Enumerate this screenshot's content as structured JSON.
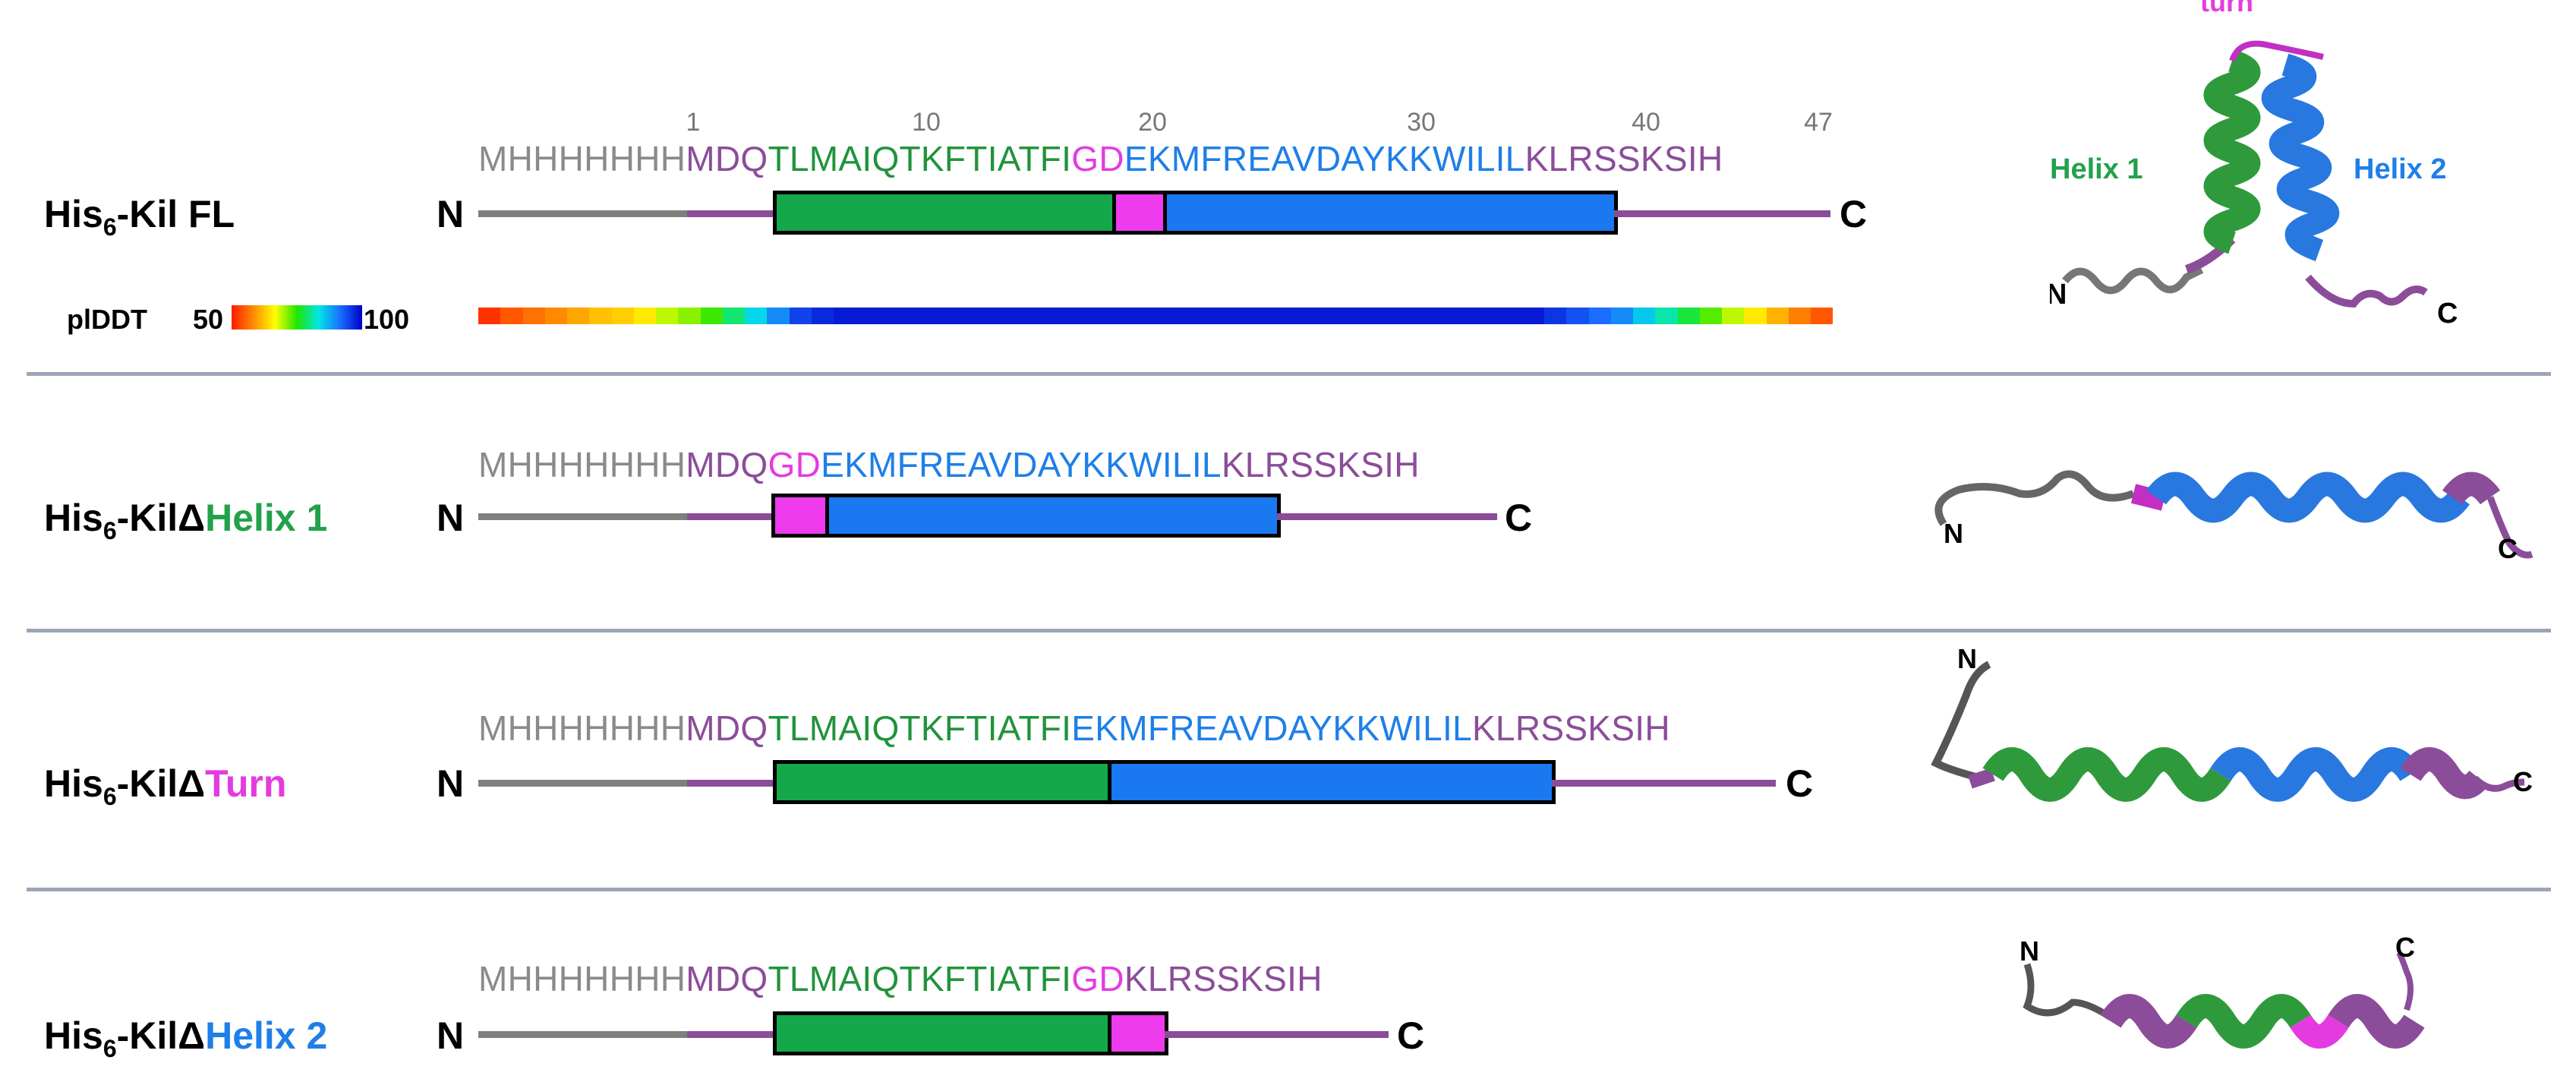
{
  "colors": {
    "his_tag": "#7f7f7f",
    "linker": "#8b4d99",
    "helix1": "#21933b",
    "turn": "#e43be0",
    "helix2": "#1e7fe8",
    "box_helix1": "#14a84b",
    "box_helix2": "#1a78f0",
    "box_turn": "#ee3bee"
  },
  "constructs": [
    {
      "name_prefix": "His",
      "name_sub": "6",
      "name_mid": "-Kil",
      "name_suffix": " FL",
      "segments": [
        {
          "text": "MHHHHHHH",
          "color": "#8a8a8a"
        },
        {
          "text": "MDQ",
          "color": "#8b4d99"
        },
        {
          "text": "TLMAIQTKFTIATFI",
          "color": "#21933b"
        },
        {
          "text": "GD",
          "color": "#e43be0"
        },
        {
          "text": "EKMFREAVDAYKKWILIL",
          "color": "#1e7fe8"
        },
        {
          "text": "KLRSSKSIH",
          "color": "#8b4d99"
        }
      ]
    },
    {
      "name_prefix": "His",
      "name_sub": "6",
      "name_mid": "-KilΔ",
      "name_suffix": "Helix 1",
      "suffix_color": "#21a24a",
      "segments": [
        {
          "text": "MHHHHHHH",
          "color": "#8a8a8a"
        },
        {
          "text": "MDQ",
          "color": "#8b4d99"
        },
        {
          "text": "GD",
          "color": "#e43be0"
        },
        {
          "text": "EKMFREAVDAYKKWILIL",
          "color": "#1e7fe8"
        },
        {
          "text": "KLRSSKSIH",
          "color": "#8b4d99"
        }
      ]
    },
    {
      "name_prefix": "His",
      "name_sub": "6",
      "name_mid": "-KilΔ",
      "name_suffix": "Turn",
      "suffix_color": "#e43be0",
      "segments": [
        {
          "text": "MHHHHHHH",
          "color": "#8a8a8a"
        },
        {
          "text": "MDQ",
          "color": "#8b4d99"
        },
        {
          "text": "TLMAIQTKFTIATFI",
          "color": "#21933b"
        },
        {
          "text": "EKMFREAVDAYKKWILIL",
          "color": "#1e7fe8"
        },
        {
          "text": "KLRSSKSIH",
          "color": "#8b4d99"
        }
      ]
    },
    {
      "name_prefix": "His",
      "name_sub": "6",
      "name_mid": "-KilΔ",
      "name_suffix": "Helix 2",
      "suffix_color": "#1e7fe8",
      "segments": [
        {
          "text": "MHHHHHHH",
          "color": "#8a8a8a"
        },
        {
          "text": "MDQ",
          "color": "#8b4d99"
        },
        {
          "text": "TLMAIQTKFTIATFI",
          "color": "#21933b"
        },
        {
          "text": "GD",
          "color": "#e43be0"
        },
        {
          "text": "KLRSSKSIH",
          "color": "#8b4d99"
        }
      ]
    }
  ],
  "ruler": [
    "1",
    "10",
    "20",
    "30",
    "40",
    "47"
  ],
  "terminus": {
    "n": "N",
    "c": "C"
  },
  "plddt": {
    "label": "plDDT",
    "min": "50",
    "max": "100",
    "profile": [
      52,
      55,
      57,
      59,
      61,
      63,
      64,
      66,
      70,
      72,
      75,
      80,
      85,
      90,
      95,
      97,
      98,
      98,
      98,
      98,
      98,
      98,
      98,
      98,
      98,
      98,
      98,
      98,
      98,
      98,
      98,
      98,
      98,
      98,
      98,
      98,
      98,
      98,
      98,
      98,
      98,
      98,
      98,
      98,
      98,
      98,
      98,
      98,
      96,
      94,
      92,
      90,
      86,
      82,
      78,
      74,
      70,
      66,
      62,
      58,
      55
    ]
  },
  "structure_labels": {
    "turn": "turn",
    "helix1": "Helix 1",
    "helix2": "Helix 2",
    "n": "N",
    "c": "C"
  }
}
